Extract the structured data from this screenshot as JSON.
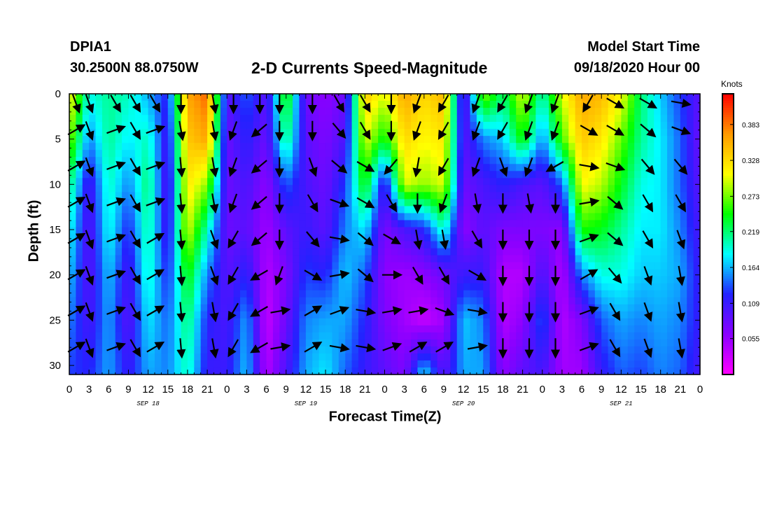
{
  "header": {
    "station": "DPIA1",
    "coordinates": "30.2500N 88.0750W",
    "title": "2-D Currents Speed-Magnitude",
    "model_label": "Model Start Time",
    "model_start": "09/18/2020 Hour 00"
  },
  "colorbar": {
    "units": "Knots",
    "ticks": [
      "0.383",
      "0.328",
      "0.273",
      "0.219",
      "0.164",
      "0.109",
      "0.055"
    ],
    "colors": [
      "#ff00ff",
      "#8a00ff",
      "#2222ff",
      "#00ffff",
      "#00ff00",
      "#ffff00",
      "#ff9900",
      "#ff0000"
    ]
  },
  "chart_data": {
    "type": "heatmap",
    "title": "2-D Currents Speed-Magnitude",
    "xlabel": "Forecast Time(Z)",
    "ylabel": "Depth (ft)",
    "x_tick_labels": [
      "0",
      "3",
      "6",
      "9",
      "12",
      "15",
      "18",
      "21",
      "0",
      "3",
      "6",
      "9",
      "12",
      "15",
      "18",
      "21",
      "0",
      "3",
      "6",
      "9",
      "12",
      "15",
      "18",
      "21",
      "0",
      "3",
      "6",
      "9",
      "12",
      "15",
      "18",
      "21",
      "0"
    ],
    "day_labels": [
      "SEP 18",
      "SEP 19",
      "SEP 20",
      "SEP 21"
    ],
    "y_ticks": [
      0,
      5,
      10,
      15,
      20,
      25,
      30
    ],
    "xlim_hours": [
      0,
      96
    ],
    "ylim_ft": [
      31,
      0
    ],
    "value_range_knots": [
      0,
      0.43
    ],
    "speed_columns": [
      {
        "hour": 0,
        "speed": [
          0.32,
          0.28,
          0.22,
          0.19,
          0.17,
          0.15,
          0.13
        ]
      },
      {
        "hour": 3,
        "speed": [
          0.19,
          0.15,
          0.1,
          0.09,
          0.09,
          0.1,
          0.12
        ]
      },
      {
        "hour": 6,
        "speed": [
          0.21,
          0.21,
          0.2,
          0.19,
          0.17,
          0.16,
          0.16
        ]
      },
      {
        "hour": 9,
        "speed": [
          0.2,
          0.18,
          0.15,
          0.12,
          0.1,
          0.09,
          0.11
        ]
      },
      {
        "hour": 12,
        "speed": [
          0.16,
          0.2,
          0.22,
          0.21,
          0.2,
          0.18,
          0.16
        ]
      },
      {
        "hour": 15,
        "speed": [
          0.12,
          0.1,
          0.09,
          0.1,
          0.12,
          0.14,
          0.15
        ]
      },
      {
        "hour": 18,
        "speed": [
          0.36,
          0.34,
          0.32,
          0.3,
          0.25,
          0.22,
          0.2
        ]
      },
      {
        "hour": 21,
        "speed": [
          0.39,
          0.36,
          0.28,
          0.2,
          0.15,
          0.12,
          0.11
        ]
      },
      {
        "hour": 24,
        "speed": [
          0.09,
          0.08,
          0.08,
          0.08,
          0.09,
          0.1,
          0.11
        ]
      },
      {
        "hour": 27,
        "speed": [
          0.14,
          0.12,
          0.1,
          0.09,
          0.12,
          0.16,
          0.17
        ]
      },
      {
        "hour": 30,
        "speed": [
          0.09,
          0.08,
          0.06,
          0.05,
          0.04,
          0.03,
          0.04
        ]
      },
      {
        "hour": 33,
        "speed": [
          0.26,
          0.22,
          0.14,
          0.09,
          0.07,
          0.08,
          0.1
        ]
      },
      {
        "hour": 36,
        "speed": [
          0.08,
          0.09,
          0.1,
          0.11,
          0.13,
          0.15,
          0.16
        ]
      },
      {
        "hour": 39,
        "speed": [
          0.06,
          0.07,
          0.08,
          0.09,
          0.12,
          0.16,
          0.18
        ]
      },
      {
        "hour": 42,
        "speed": [
          0.08,
          0.1,
          0.13,
          0.15,
          0.17,
          0.16,
          0.14
        ]
      },
      {
        "hour": 45,
        "speed": [
          0.34,
          0.3,
          0.25,
          0.18,
          0.14,
          0.12,
          0.11
        ]
      },
      {
        "hour": 48,
        "speed": [
          0.3,
          0.24,
          0.1,
          0.07,
          0.06,
          0.07,
          0.09
        ]
      },
      {
        "hour": 51,
        "speed": [
          0.36,
          0.33,
          0.3,
          0.1,
          0.05,
          0.05,
          0.07
        ]
      },
      {
        "hour": 54,
        "speed": [
          0.33,
          0.31,
          0.28,
          0.12,
          0.06,
          0.03,
          0.18
        ]
      },
      {
        "hour": 57,
        "speed": [
          0.35,
          0.32,
          0.3,
          0.2,
          0.08,
          0.05,
          0.09
        ]
      },
      {
        "hour": 60,
        "speed": [
          0.08,
          0.09,
          0.08,
          0.06,
          0.11,
          0.17,
          0.16
        ]
      },
      {
        "hour": 63,
        "speed": [
          0.28,
          0.15,
          0.1,
          0.09,
          0.11,
          0.15,
          0.16
        ]
      },
      {
        "hour": 66,
        "speed": [
          0.22,
          0.17,
          0.12,
          0.07,
          0.04,
          0.04,
          0.06
        ]
      },
      {
        "hour": 69,
        "speed": [
          0.3,
          0.25,
          0.1,
          0.07,
          0.04,
          0.06,
          0.09
        ]
      },
      {
        "hour": 72,
        "speed": [
          0.2,
          0.15,
          0.09,
          0.07,
          0.1,
          0.14,
          0.1
        ]
      },
      {
        "hour": 75,
        "speed": [
          0.3,
          0.26,
          0.14,
          0.06,
          0.04,
          0.04,
          0.05
        ]
      },
      {
        "hour": 78,
        "speed": [
          0.36,
          0.34,
          0.31,
          0.25,
          0.15,
          0.07,
          0.05
        ]
      },
      {
        "hour": 81,
        "speed": [
          0.35,
          0.32,
          0.29,
          0.24,
          0.19,
          0.14,
          0.11
        ]
      },
      {
        "hour": 84,
        "speed": [
          0.31,
          0.27,
          0.24,
          0.21,
          0.19,
          0.16,
          0.14
        ]
      },
      {
        "hour": 87,
        "speed": [
          0.22,
          0.21,
          0.19,
          0.18,
          0.17,
          0.15,
          0.13
        ]
      },
      {
        "hour": 90,
        "speed": [
          0.17,
          0.18,
          0.18,
          0.18,
          0.17,
          0.16,
          0.15
        ]
      },
      {
        "hour": 93,
        "speed": [
          0.13,
          0.14,
          0.14,
          0.15,
          0.16,
          0.15,
          0.14
        ]
      },
      {
        "hour": 96,
        "speed": [
          0.09,
          0.08,
          0.09,
          0.1,
          0.11,
          0.11,
          0.1
        ]
      }
    ],
    "speed_depths_ft": [
      0,
      5,
      10,
      15,
      20,
      25,
      31
    ],
    "vector_rows_depth_ft": [
      1,
      4,
      8,
      12,
      16,
      20,
      24,
      28
    ],
    "vector_direction_columns": [
      {
        "hour": 1,
        "dir_deg": [
          160,
          60,
          60,
          60,
          60,
          60,
          60,
          60
        ]
      },
      {
        "hour": 3,
        "dir_deg": [
          160,
          160,
          160,
          160,
          160,
          160,
          160,
          160
        ]
      },
      {
        "hour": 7,
        "dir_deg": [
          150,
          70,
          70,
          70,
          70,
          70,
          70,
          70
        ]
      },
      {
        "hour": 10,
        "dir_deg": [
          150,
          150,
          150,
          150,
          150,
          150,
          150,
          150
        ]
      },
      {
        "hour": 13,
        "dir_deg": [
          150,
          70,
          70,
          70,
          60,
          60,
          60,
          60
        ]
      },
      {
        "hour": 17,
        "dir_deg": [
          180,
          170,
          175,
          175,
          175,
          175,
          175,
          175
        ]
      },
      {
        "hour": 22,
        "dir_deg": [
          170,
          170,
          170,
          170,
          160,
          160,
          170,
          170
        ]
      },
      {
        "hour": 25,
        "dir_deg": [
          180,
          200,
          200,
          200,
          210,
          210,
          210,
          210
        ]
      },
      {
        "hour": 29,
        "dir_deg": [
          180,
          230,
          230,
          230,
          230,
          240,
          240,
          240
        ]
      },
      {
        "hour": 32,
        "dir_deg": [
          180,
          180,
          180,
          180,
          180,
          200,
          80,
          80
        ]
      },
      {
        "hour": 37,
        "dir_deg": [
          180,
          180,
          160,
          150,
          140,
          120,
          60,
          60
        ]
      },
      {
        "hour": 41,
        "dir_deg": [
          150,
          140,
          130,
          110,
          100,
          80,
          70,
          100
        ]
      },
      {
        "hour": 45,
        "dir_deg": [
          150,
          150,
          120,
          120,
          130,
          130,
          100,
          100
        ]
      },
      {
        "hour": 49,
        "dir_deg": [
          180,
          180,
          220,
          150,
          120,
          90,
          80,
          70
        ]
      },
      {
        "hour": 53,
        "dir_deg": [
          200,
          200,
          190,
          180,
          170,
          150,
          80,
          60
        ]
      },
      {
        "hour": 57,
        "dir_deg": [
          210,
          210,
          210,
          200,
          170,
          150,
          110,
          60
        ]
      },
      {
        "hour": 62,
        "dir_deg": [
          200,
          200,
          200,
          170,
          150,
          120,
          100,
          80
        ]
      },
      {
        "hour": 66,
        "dir_deg": [
          210,
          210,
          160,
          180,
          180,
          180,
          180,
          180
        ]
      },
      {
        "hour": 70,
        "dir_deg": [
          200,
          200,
          200,
          170,
          180,
          180,
          180,
          180
        ]
      },
      {
        "hour": 74,
        "dir_deg": [
          200,
          200,
          240,
          180,
          180,
          180,
          180,
          180
        ]
      },
      {
        "hour": 79,
        "dir_deg": [
          210,
          120,
          100,
          80,
          70,
          60,
          70,
          70
        ]
      },
      {
        "hour": 83,
        "dir_deg": [
          120,
          120,
          110,
          130,
          130,
          140,
          150,
          150
        ]
      },
      {
        "hour": 88,
        "dir_deg": [
          120,
          130,
          140,
          150,
          150,
          160,
          160,
          160
        ]
      },
      {
        "hour": 93,
        "dir_deg": [
          100,
          110,
          140,
          150,
          160,
          170,
          170,
          170
        ]
      }
    ]
  }
}
